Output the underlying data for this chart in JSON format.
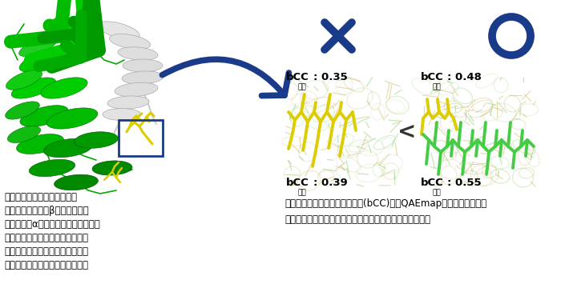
{
  "bg_color": "#ffffff",
  "navy": "#1a3a8a",
  "protein_dark": "#008800",
  "protein_mid": "#00bb00",
  "protein_light": "#33dd33",
  "gray_light": "#e0e0e0",
  "gray_mid": "#c8c8c8",
  "mesh_tan": "#ccb866",
  "mesh_green": "#88cc66",
  "yellow_stick": "#ddcc00",
  "green_stick": "#44cc44",
  "box_blue": "#1a3a8a",
  "bcc_label": "bCC",
  "yosoku": "予測",
  "s_tl": "0.35",
  "s_bl": "0.39",
  "s_tr": "0.48",
  "s_br": "0.55",
  "tl1": "タンパク質の構造は二次構造",
  "tl2": "（矢印で示されるβシートやせん",
  "tl3": "で示されるαヘリックス）とループ領",
  "tl4": "域（細いひも状で示される）から",
  "tl5": "なる。ループ領域は構造の揺らぎ",
  "tl6": "が大きいため、構造決定が難しい",
  "tr1": "各アミノ酸の構造の評価スコア(bCC)を　QAEmap　により予測する",
  "tr2": "ことで、複数のモデルからより正しい構造を選択できる。"
}
